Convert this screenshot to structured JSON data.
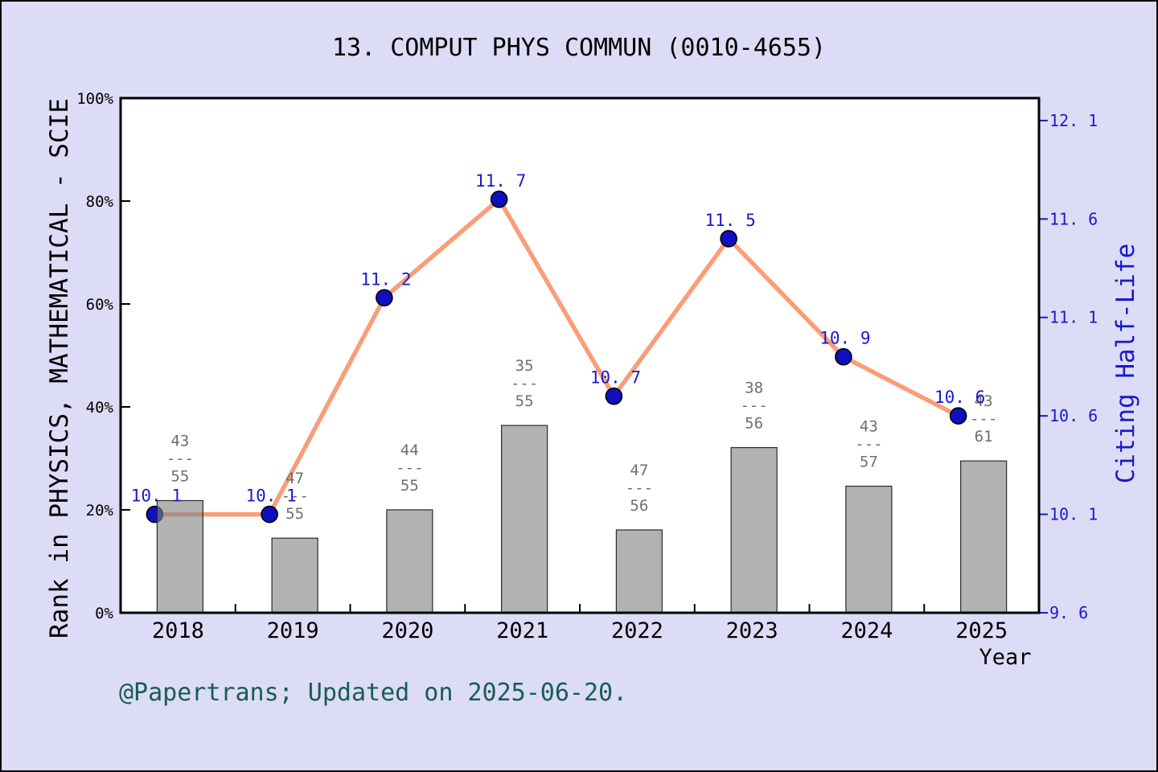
{
  "title": "13. COMPUT PHYS COMMUN (0010-4655)",
  "footer": "@Papertrans; Updated on 2025-06-20.",
  "axes": {
    "left_label": "Rank in PHYSICS, MATHEMATICAL - SCIE",
    "right_label": "Citing Half-Life",
    "x_label": "Year"
  },
  "colors": {
    "background": "#dcdcf6",
    "plot_bg": "#ffffff",
    "frame": "#000000",
    "bar_fill": "#838383",
    "bar_fill_opacity": 0.62,
    "bar_stroke": "#2b2b2b",
    "line": "#f89e78",
    "marker_fill": "#0f0fc0",
    "marker_stroke": "#000000",
    "blue_text": "#1a1acd",
    "gray_text": "#6e6e6e",
    "black_text": "#000000",
    "footer_text": "#175d52"
  },
  "chart_data": {
    "type": "bar",
    "subtype": "bar+line combo, dual axis",
    "categories": [
      "2018",
      "2019",
      "2020",
      "2021",
      "2022",
      "2023",
      "2024",
      "2025"
    ],
    "series": [
      {
        "name": "Rank in PHYSICS, MATHEMATICAL - SCIE (bars, left % axis)",
        "type": "bar",
        "axis": "left",
        "fractions": [
          {
            "num": "43",
            "den": "55"
          },
          {
            "num": "47",
            "den": "55"
          },
          {
            "num": "44",
            "den": "55"
          },
          {
            "num": "35",
            "den": "55"
          },
          {
            "num": "47",
            "den": "56"
          },
          {
            "num": "38",
            "den": "56"
          },
          {
            "num": "43",
            "den": "57"
          },
          {
            "num": "43",
            "den": "61"
          }
        ],
        "fraction_divider": "---",
        "values_pct": [
          21.8,
          14.5,
          20.0,
          36.4,
          16.1,
          32.1,
          24.6,
          29.5
        ]
      },
      {
        "name": "Citing Half-Life (line with dots, right axis)",
        "type": "line",
        "axis": "right",
        "values": [
          10.1,
          10.1,
          11.2,
          11.7,
          10.7,
          11.5,
          10.9,
          10.6
        ],
        "point_labels": [
          "10. 1",
          "10. 1",
          "11. 2",
          "11. 7",
          "10. 7",
          "11. 5",
          "10. 9",
          "10. 6"
        ]
      }
    ],
    "left_axis": {
      "ticks_pct": [
        0,
        20,
        40,
        60,
        80,
        100
      ],
      "tick_labels": [
        "0%",
        "20%",
        "40%",
        "60%",
        "80%",
        "100%"
      ],
      "ylim": [
        0,
        100
      ]
    },
    "right_axis": {
      "ticks": [
        9.6,
        10.1,
        10.6,
        11.1,
        11.6,
        12.1
      ],
      "tick_labels": [
        "9. 6",
        "10. 1",
        "10. 6",
        "11. 1",
        "11. 6",
        "12. 1"
      ],
      "ylim": [
        9.6,
        12.214
      ]
    },
    "grid": false,
    "legend": "none"
  }
}
